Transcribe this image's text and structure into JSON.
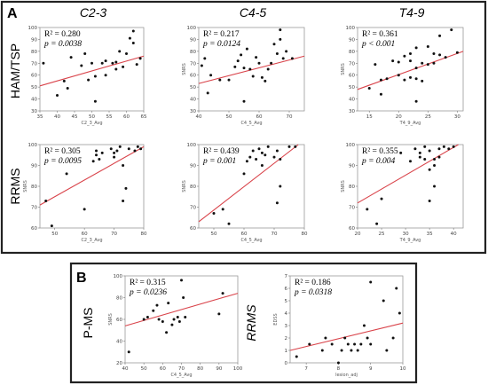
{
  "panel_a": {
    "letter": "A",
    "col_headers": [
      "C2-3",
      "C4-5",
      "T4-9"
    ],
    "row_headers": [
      "HAM/TSP",
      "RRMS"
    ]
  },
  "panel_b": {
    "letter": "B",
    "row_headers": [
      "P-MS",
      "RRMS"
    ]
  },
  "colors": {
    "fit": "#d9434a",
    "point": "#111111",
    "frame": "#222222"
  },
  "chart_data": [
    {
      "type": "scatter",
      "panel": "A-HAM-C2-3",
      "stat1": "R² = 0.280",
      "stat2": "p = 0.0038",
      "xlabel": "C2_3_Avg",
      "ylabel": "",
      "xlim": [
        35,
        65
      ],
      "ylim": [
        30,
        100
      ],
      "xticks": [
        35,
        40,
        45,
        50,
        55,
        60,
        65
      ],
      "yticks": [
        30,
        40,
        50,
        60,
        70,
        80,
        90,
        100
      ],
      "fit": [
        [
          35,
          51
        ],
        [
          65,
          76
        ]
      ],
      "points": [
        [
          36,
          70
        ],
        [
          40,
          43
        ],
        [
          42,
          55
        ],
        [
          43,
          49
        ],
        [
          44,
          75
        ],
        [
          47,
          68
        ],
        [
          48,
          78
        ],
        [
          49,
          56
        ],
        [
          50,
          70
        ],
        [
          51,
          59
        ],
        [
          51,
          38
        ],
        [
          53,
          70
        ],
        [
          54,
          72
        ],
        [
          54,
          60
        ],
        [
          56,
          70
        ],
        [
          57,
          65
        ],
        [
          57,
          71
        ],
        [
          58,
          80
        ],
        [
          59,
          67
        ],
        [
          60,
          78
        ],
        [
          61,
          91
        ],
        [
          62,
          87
        ],
        [
          62,
          97
        ],
        [
          63,
          69
        ],
        [
          64,
          74
        ]
      ]
    },
    {
      "type": "scatter",
      "panel": "A-HAM-C4-5",
      "stat1": "R² = 0.217",
      "stat2": "p = 0.0124",
      "xlabel": "C4_5_Avg",
      "ylabel": "SNRS",
      "xlim": [
        40,
        75
      ],
      "ylim": [
        30,
        100
      ],
      "xticks": [
        40,
        50,
        60,
        70
      ],
      "yticks": [
        30,
        40,
        50,
        60,
        70,
        80,
        90,
        100
      ],
      "fit": [
        [
          40,
          53
        ],
        [
          75,
          76
        ]
      ],
      "points": [
        [
          41,
          68
        ],
        [
          42,
          74
        ],
        [
          43,
          45
        ],
        [
          44,
          60
        ],
        [
          47,
          56
        ],
        [
          50,
          56
        ],
        [
          52,
          67
        ],
        [
          53,
          72
        ],
        [
          54,
          77
        ],
        [
          55,
          66
        ],
        [
          55,
          38
        ],
        [
          56,
          82
        ],
        [
          57,
          65
        ],
        [
          58,
          59
        ],
        [
          59,
          75
        ],
        [
          60,
          70
        ],
        [
          61,
          58
        ],
        [
          62,
          55
        ],
        [
          63,
          65
        ],
        [
          64,
          70
        ],
        [
          65,
          86
        ],
        [
          66,
          78
        ],
        [
          67,
          90
        ],
        [
          67,
          98
        ],
        [
          68,
          74
        ],
        [
          69,
          80
        ],
        [
          71,
          74
        ]
      ]
    },
    {
      "type": "scatter",
      "panel": "A-HAM-T4-9",
      "stat1": "R² = 0.361",
      "stat2": "p < 0.001",
      "xlabel": "T4_9_Avg",
      "ylabel": "SNRS",
      "xlim": [
        13,
        31
      ],
      "ylim": [
        30,
        100
      ],
      "xticks": [
        15,
        20,
        25,
        30
      ],
      "yticks": [
        30,
        40,
        50,
        60,
        70,
        80,
        90,
        100
      ],
      "fit": [
        [
          13,
          48
        ],
        [
          31,
          80
        ]
      ],
      "points": [
        [
          15,
          49
        ],
        [
          16,
          69
        ],
        [
          17,
          56
        ],
        [
          17,
          44
        ],
        [
          18,
          57
        ],
        [
          19,
          72
        ],
        [
          20,
          60
        ],
        [
          20,
          71
        ],
        [
          21,
          76
        ],
        [
          21,
          56
        ],
        [
          22,
          78
        ],
        [
          22,
          72
        ],
        [
          22,
          58
        ],
        [
          23,
          57
        ],
        [
          23,
          38
        ],
        [
          23,
          66
        ],
        [
          23,
          83
        ],
        [
          24,
          55
        ],
        [
          24,
          70
        ],
        [
          25,
          69
        ],
        [
          25,
          84
        ],
        [
          26,
          70
        ],
        [
          26,
          78
        ],
        [
          27,
          77
        ],
        [
          27,
          93
        ],
        [
          28,
          75
        ],
        [
          29,
          98
        ],
        [
          30,
          79
        ]
      ]
    },
    {
      "type": "scatter",
      "panel": "A-RRMS-C2-3",
      "stat1": "R² = 0.305",
      "stat2": "p = 0.0095",
      "xlabel": "C2_3_Avg",
      "ylabel": "SNRS",
      "xlim": [
        45,
        80
      ],
      "ylim": [
        60,
        100
      ],
      "xticks": [
        50,
        60,
        70,
        80
      ],
      "yticks": [
        60,
        70,
        80,
        90,
        100
      ],
      "fit": [
        [
          45,
          71
        ],
        [
          80,
          99
        ]
      ],
      "points": [
        [
          47,
          73
        ],
        [
          49,
          61
        ],
        [
          54,
          86
        ],
        [
          60,
          69
        ],
        [
          63,
          92
        ],
        [
          64,
          95
        ],
        [
          64,
          97
        ],
        [
          65,
          93
        ],
        [
          66,
          96
        ],
        [
          69,
          98
        ],
        [
          70,
          96
        ],
        [
          70,
          94
        ],
        [
          71,
          97
        ],
        [
          72,
          99
        ],
        [
          73,
          90
        ],
        [
          73,
          73
        ],
        [
          74,
          79
        ],
        [
          75,
          98
        ],
        [
          77,
          97
        ],
        [
          78,
          99
        ],
        [
          79,
          98
        ]
      ]
    },
    {
      "type": "scatter",
      "panel": "A-RRMS-C4-5",
      "stat1": "R² = 0.439",
      "stat2": "p = 0.001",
      "xlabel": "C4_5_Avg",
      "ylabel": "SNRS",
      "xlim": [
        45,
        80
      ],
      "ylim": [
        60,
        100
      ],
      "xticks": [
        50,
        60,
        70,
        80
      ],
      "yticks": [
        60,
        70,
        80,
        90,
        100
      ],
      "fit": [
        [
          45,
          63
        ],
        [
          78,
          100
        ]
      ],
      "points": [
        [
          50,
          67
        ],
        [
          53,
          69
        ],
        [
          55,
          62
        ],
        [
          60,
          86
        ],
        [
          61,
          92
        ],
        [
          62,
          94
        ],
        [
          63,
          97
        ],
        [
          64,
          93
        ],
        [
          65,
          98
        ],
        [
          66,
          96
        ],
        [
          66,
          90
        ],
        [
          67,
          95
        ],
        [
          68,
          99
        ],
        [
          70,
          94
        ],
        [
          71,
          97
        ],
        [
          71,
          72
        ],
        [
          72,
          80
        ],
        [
          72,
          93
        ],
        [
          75,
          99
        ],
        [
          77,
          99
        ]
      ]
    },
    {
      "type": "scatter",
      "panel": "A-RRMS-T4-9",
      "stat1": "R² = 0.355",
      "stat2": "p = 0.004",
      "xlabel": "T4_9_Avg",
      "ylabel": "SNRS",
      "xlim": [
        20,
        42
      ],
      "ylim": [
        60,
        100
      ],
      "xticks": [
        20,
        25,
        30,
        35,
        40
      ],
      "yticks": [
        60,
        70,
        80,
        90,
        100
      ],
      "fit": [
        [
          20,
          72
        ],
        [
          41,
          100
        ]
      ],
      "points": [
        [
          22,
          69
        ],
        [
          24,
          62
        ],
        [
          25,
          74
        ],
        [
          29,
          96
        ],
        [
          31,
          92
        ],
        [
          32,
          98
        ],
        [
          33,
          94
        ],
        [
          33,
          96
        ],
        [
          34,
          99
        ],
        [
          34,
          93
        ],
        [
          35,
          73
        ],
        [
          35,
          97
        ],
        [
          35,
          88
        ],
        [
          36,
          90
        ],
        [
          36,
          80
        ],
        [
          36,
          93
        ],
        [
          37,
          98
        ],
        [
          37,
          94
        ],
        [
          38,
          99
        ],
        [
          39,
          98
        ],
        [
          40,
          99
        ]
      ]
    },
    {
      "type": "scatter",
      "panel": "B-PMS",
      "stat1": "R² = 0.315",
      "stat2": "p = 0.0236",
      "xlabel": "C4_5_Avg",
      "ylabel": "SNRS",
      "xlim": [
        40,
        100
      ],
      "ylim": [
        20,
        100
      ],
      "xticks": [
        40,
        50,
        60,
        70,
        80,
        90,
        100
      ],
      "yticks": [
        20,
        40,
        60,
        80,
        100
      ],
      "fit": [
        [
          40,
          54
        ],
        [
          100,
          84
        ]
      ],
      "points": [
        [
          42,
          30
        ],
        [
          50,
          60
        ],
        [
          52,
          62
        ],
        [
          55,
          68
        ],
        [
          57,
          73
        ],
        [
          58,
          60
        ],
        [
          60,
          58
        ],
        [
          62,
          48
        ],
        [
          63,
          75
        ],
        [
          65,
          55
        ],
        [
          66,
          60
        ],
        [
          68,
          62
        ],
        [
          69,
          58
        ],
        [
          70,
          96
        ],
        [
          71,
          80
        ],
        [
          72,
          62
        ],
        [
          90,
          65
        ],
        [
          92,
          84
        ]
      ]
    },
    {
      "type": "scatter",
      "panel": "B-RRMS",
      "stat1": "R² = 0.186",
      "stat2": "p = 0.0318",
      "xlabel": "lesion_adj",
      "ylabel": "EDSS",
      "xlim": [
        6.5,
        10
      ],
      "ylim": [
        0,
        7
      ],
      "xticks": [
        7,
        8,
        9,
        10
      ],
      "yticks": [
        0,
        1,
        2,
        3,
        4,
        5,
        6,
        7
      ],
      "fit": [
        [
          6.5,
          1.0
        ],
        [
          10,
          3.2
        ]
      ],
      "points": [
        [
          6.7,
          0.5
        ],
        [
          7.1,
          1.5
        ],
        [
          7.5,
          1.0
        ],
        [
          7.6,
          2.0
        ],
        [
          7.8,
          1.5
        ],
        [
          8.0,
          0.0
        ],
        [
          8.1,
          1.0
        ],
        [
          8.2,
          2.0
        ],
        [
          8.3,
          1.5
        ],
        [
          8.4,
          1.0
        ],
        [
          8.5,
          1.5
        ],
        [
          8.6,
          1.0
        ],
        [
          8.7,
          1.5
        ],
        [
          8.8,
          3.0
        ],
        [
          8.9,
          2.0
        ],
        [
          9.0,
          1.5
        ],
        [
          9.0,
          6.5
        ],
        [
          9.4,
          5.0
        ],
        [
          9.5,
          1.0
        ],
        [
          9.7,
          2.0
        ],
        [
          9.8,
          6.0
        ],
        [
          9.9,
          4.0
        ]
      ]
    }
  ]
}
